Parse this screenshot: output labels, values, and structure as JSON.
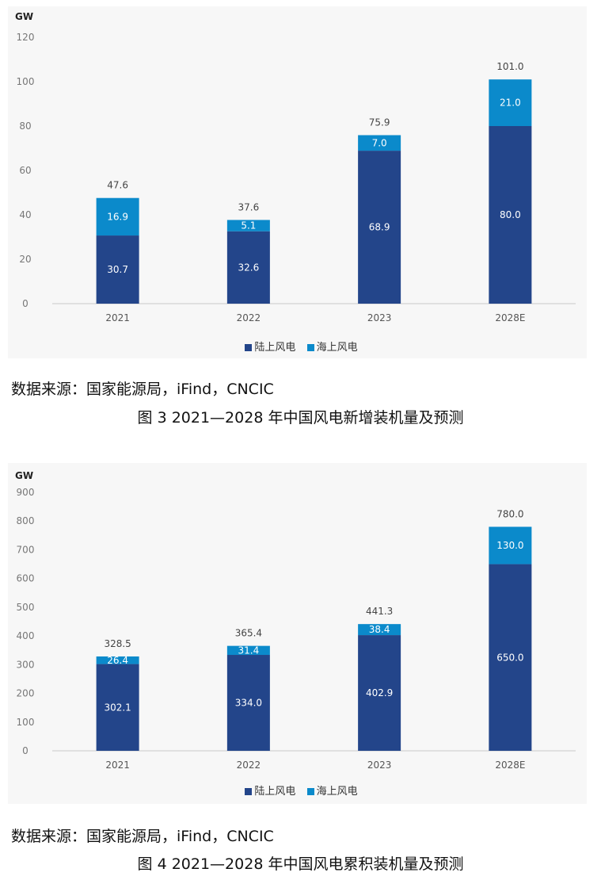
{
  "colors": {
    "onshore": "#23458a",
    "offshore": "#0b8acb",
    "axis": "#c9c9c9",
    "panel_bg": "#f7f7f7"
  },
  "source_line": "数据来源：国家能源局，iFind，CNCIC",
  "chart_data": [
    {
      "type": "bar",
      "stacked": true,
      "unit_label": "GW",
      "categories": [
        "2021",
        "2022",
        "2023",
        "2028E"
      ],
      "series": [
        {
          "name": "陆上风电",
          "values": [
            30.7,
            32.6,
            68.9,
            80.0
          ],
          "labels": [
            "30.7",
            "32.6",
            "68.9",
            "80.0"
          ]
        },
        {
          "name": "海上风电",
          "values": [
            16.9,
            5.1,
            7.0,
            21.0
          ],
          "labels": [
            "16.9",
            "5.1",
            "7.0",
            "21.0"
          ]
        }
      ],
      "totals": [
        "47.6",
        "37.6",
        "75.9",
        "101.0"
      ],
      "ylim": [
        0,
        120
      ],
      "yticks": [
        "0",
        "20",
        "40",
        "60",
        "80",
        "100",
        "120"
      ],
      "legend_position": "bottom-center",
      "caption": "图 3  2021—2028 年中国风电新增装机量及预测"
    },
    {
      "type": "bar",
      "stacked": true,
      "unit_label": "GW",
      "categories": [
        "2021",
        "2022",
        "2023",
        "2028E"
      ],
      "series": [
        {
          "name": "陆上风电",
          "values": [
            302.1,
            334.0,
            402.9,
            650.0
          ],
          "labels": [
            "302.1",
            "334.0",
            "402.9",
            "650.0"
          ]
        },
        {
          "name": "海上风电",
          "values": [
            26.4,
            31.4,
            38.4,
            130.0
          ],
          "labels": [
            "26.4",
            "31.4",
            "38.4",
            "130.0"
          ]
        }
      ],
      "totals": [
        "328.5",
        "365.4",
        "441.3",
        "780.0"
      ],
      "ylim": [
        0,
        900
      ],
      "yticks": [
        "0",
        "100",
        "200",
        "300",
        "400",
        "500",
        "600",
        "700",
        "800",
        "900"
      ],
      "legend_position": "bottom-center",
      "caption": "图 4  2021—2028 年中国风电累积装机量及预测"
    }
  ]
}
